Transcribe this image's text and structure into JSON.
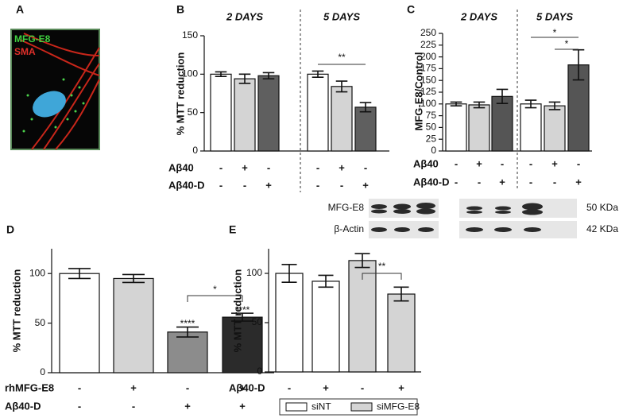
{
  "image_panel": {
    "label": "A",
    "stain_1": "MFG-E8",
    "stain_2": "SMA"
  },
  "blot": {
    "rows": [
      "MFG-E8",
      "β-Actin"
    ],
    "sizes": [
      "50 KDa",
      "42 KDa"
    ]
  },
  "chart_data": [
    {
      "type": "bar",
      "label": "B",
      "y_label": "% MTT reduction",
      "groups": [
        "2 DAYS",
        "5 DAYS"
      ],
      "values": [
        100,
        94,
        98,
        100,
        84,
        57
      ],
      "errors": [
        3,
        6,
        4,
        4,
        7,
        6
      ],
      "colors": [
        "#ffffff",
        "#d4d4d4",
        "#5f5f5f",
        "#ffffff",
        "#d4d4d4",
        "#5f5f5f"
      ],
      "ylim": [
        0,
        150
      ],
      "yticks": [
        0,
        50,
        100,
        150
      ],
      "rows": [
        {
          "name": "Aβ40",
          "signs": [
            "-",
            "+",
            "-",
            "-",
            "+",
            "-"
          ]
        },
        {
          "name": "Aβ40-D",
          "signs": [
            "-",
            "-",
            "+",
            "-",
            "-",
            "+"
          ]
        }
      ],
      "annotations": [
        "**"
      ]
    },
    {
      "type": "bar",
      "label": "C",
      "y_label": "MFG-E8/Control",
      "groups": [
        "2 DAYS",
        "5 DAYS"
      ],
      "values": [
        100,
        98,
        116,
        100,
        96,
        183
      ],
      "errors": [
        4,
        6,
        15,
        8,
        8,
        32
      ],
      "colors": [
        "#ffffff",
        "#d4d4d4",
        "#555555",
        "#ffffff",
        "#d4d4d4",
        "#555555"
      ],
      "ylim": [
        0,
        250
      ],
      "yticks": [
        0,
        25,
        50,
        75,
        100,
        125,
        150,
        175,
        200,
        225,
        250
      ],
      "rows": [
        {
          "name": "Aβ40",
          "signs": [
            "-",
            "+",
            "-",
            "-",
            "+",
            "-"
          ]
        },
        {
          "name": "Aβ40-D",
          "signs": [
            "-",
            "-",
            "+",
            "-",
            "-",
            "+"
          ]
        }
      ],
      "annotations": [
        "*",
        "*"
      ]
    },
    {
      "type": "bar",
      "label": "D",
      "y_label": "% MTT reduction",
      "values": [
        100,
        95,
        41,
        56
      ],
      "errors": [
        5,
        4,
        5,
        4
      ],
      "colors": [
        "#ffffff",
        "#d4d4d4",
        "#8c8c8c",
        "#2b2b2b"
      ],
      "ylim": [
        0,
        125
      ],
      "yticks": [
        0,
        50,
        100
      ],
      "rows": [
        {
          "name": "rhMFG-E8",
          "signs": [
            "-",
            "+",
            "-",
            "+"
          ]
        },
        {
          "name": "Aβ40-D",
          "signs": [
            "-",
            "-",
            "+",
            "+"
          ]
        }
      ],
      "annotations": [
        "****",
        "****",
        "*"
      ]
    },
    {
      "type": "bar",
      "label": "E",
      "y_label": "% MTT reduction",
      "series": [
        {
          "name": "siNT",
          "color": "#ffffff",
          "values": [
            100,
            92,
            null,
            null
          ],
          "errors": [
            9,
            6,
            null,
            null
          ]
        },
        {
          "name": "siMFG-E8",
          "color": "#d4d4d4",
          "values": [
            null,
            null,
            113,
            79
          ],
          "errors": [
            null,
            null,
            7,
            7
          ]
        }
      ],
      "ylim": [
        0,
        125
      ],
      "yticks": [
        0,
        50,
        100
      ],
      "rows": [
        {
          "name": "Aβ40-D",
          "signs": [
            "-",
            "+",
            "-",
            "+"
          ]
        }
      ],
      "annotations": [
        "**"
      ]
    }
  ]
}
